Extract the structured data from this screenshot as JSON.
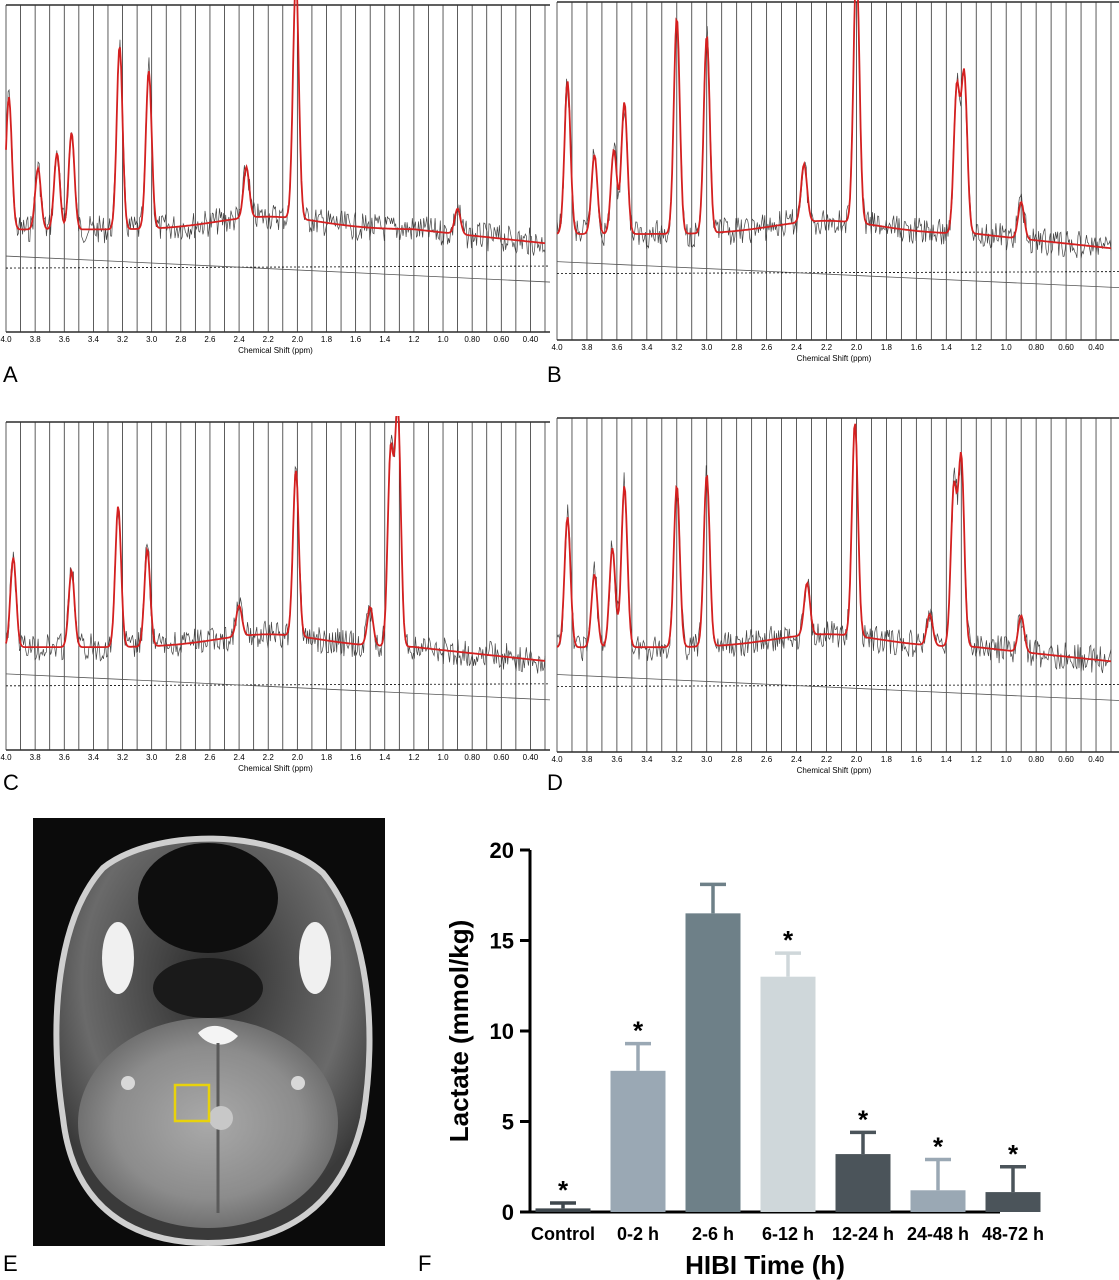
{
  "spectra": [
    {
      "panel_label": "A",
      "x_axis_label": "Chemical Shift (ppm)",
      "ticks": [
        "4.0",
        "3.8",
        "3.6",
        "3.4",
        "3.2",
        "3.0",
        "2.8",
        "2.6",
        "2.4",
        "2.2",
        "2.0",
        "1.8",
        "1.6",
        "1.4",
        "1.2",
        "1.0",
        "0.80",
        "0.60",
        "0.40"
      ],
      "peaks": [
        {
          "ppm": 3.98,
          "height": 0.52
        },
        {
          "ppm": 3.78,
          "height": 0.24
        },
        {
          "ppm": 3.65,
          "height": 0.3
        },
        {
          "ppm": 3.55,
          "height": 0.38
        },
        {
          "ppm": 3.22,
          "height": 0.72
        },
        {
          "ppm": 3.02,
          "height": 0.62
        },
        {
          "ppm": 2.35,
          "height": 0.2
        },
        {
          "ppm": 2.01,
          "height": 0.95
        },
        {
          "ppm": 0.9,
          "height": 0.1
        }
      ]
    },
    {
      "panel_label": "B",
      "x_axis_label": "Chemical Shift (ppm)",
      "ticks": [
        "4.0",
        "3.8",
        "3.6",
        "3.4",
        "3.2",
        "3.0",
        "2.8",
        "2.6",
        "2.4",
        "2.2",
        "2.0",
        "1.8",
        "1.6",
        "1.4",
        "1.2",
        "1.0",
        "0.80",
        "0.60",
        "0.40"
      ],
      "peaks": [
        {
          "ppm": 3.93,
          "height": 0.58
        },
        {
          "ppm": 3.75,
          "height": 0.3
        },
        {
          "ppm": 3.62,
          "height": 0.32
        },
        {
          "ppm": 3.55,
          "height": 0.5
        },
        {
          "ppm": 3.2,
          "height": 0.82
        },
        {
          "ppm": 3.0,
          "height": 0.75
        },
        {
          "ppm": 2.35,
          "height": 0.22
        },
        {
          "ppm": 2.0,
          "height": 0.98
        },
        {
          "ppm": 1.33,
          "height": 0.55
        },
        {
          "ppm": 1.28,
          "height": 0.6
        },
        {
          "ppm": 0.9,
          "height": 0.14
        }
      ]
    },
    {
      "panel_label": "C",
      "x_axis_label": "Chemical Shift (ppm)",
      "ticks": [
        "4.0",
        "3.8",
        "3.6",
        "3.4",
        "3.2",
        "3.0",
        "2.8",
        "2.6",
        "2.4",
        "2.2",
        "2.0",
        "1.8",
        "1.6",
        "1.4",
        "1.2",
        "1.0",
        "0.80",
        "0.60",
        "0.40"
      ],
      "peaks": [
        {
          "ppm": 3.95,
          "height": 0.35
        },
        {
          "ppm": 3.55,
          "height": 0.3
        },
        {
          "ppm": 3.23,
          "height": 0.55
        },
        {
          "ppm": 3.03,
          "height": 0.38
        },
        {
          "ppm": 2.4,
          "height": 0.12
        },
        {
          "ppm": 2.01,
          "height": 0.65
        },
        {
          "ppm": 1.5,
          "height": 0.15
        },
        {
          "ppm": 1.36,
          "height": 0.75
        },
        {
          "ppm": 1.31,
          "height": 0.92
        }
      ]
    },
    {
      "panel_label": "D",
      "x_axis_label": "Chemical Shift (ppm)",
      "ticks": [
        "4.0",
        "3.8",
        "3.6",
        "3.4",
        "3.2",
        "3.0",
        "2.8",
        "2.6",
        "2.4",
        "2.2",
        "2.0",
        "1.8",
        "1.6",
        "1.4",
        "1.2",
        "1.0",
        "0.80",
        "0.60",
        "0.40"
      ],
      "peaks": [
        {
          "ppm": 3.93,
          "height": 0.5
        },
        {
          "ppm": 3.75,
          "height": 0.28
        },
        {
          "ppm": 3.63,
          "height": 0.38
        },
        {
          "ppm": 3.55,
          "height": 0.62
        },
        {
          "ppm": 3.2,
          "height": 0.62
        },
        {
          "ppm": 3.0,
          "height": 0.66
        },
        {
          "ppm": 2.33,
          "height": 0.2
        },
        {
          "ppm": 2.01,
          "height": 0.82
        },
        {
          "ppm": 1.51,
          "height": 0.12
        },
        {
          "ppm": 1.35,
          "height": 0.6
        },
        {
          "ppm": 1.3,
          "height": 0.72
        },
        {
          "ppm": 0.9,
          "height": 0.14
        }
      ]
    }
  ],
  "mri": {
    "panel_label": "E",
    "roi_color": "#e8d20c"
  },
  "chart_data": {
    "type": "bar",
    "panel_label": "F",
    "categories": [
      "Control",
      "0-2 h",
      "2-6 h",
      "6-12 h",
      "12-24 h",
      "24-48 h",
      "48-72 h"
    ],
    "values": [
      0.2,
      7.8,
      16.5,
      13.0,
      3.2,
      1.2,
      1.1
    ],
    "errors": [
      0.3,
      1.5,
      1.6,
      1.3,
      1.2,
      1.7,
      1.4
    ],
    "significance": [
      "*",
      "*",
      "",
      "*",
      "*",
      "*",
      "*"
    ],
    "colors": [
      "#3e474d",
      "#9aa8b4",
      "#6e8088",
      "#cfd7da",
      "#4b545a",
      "#9aa8b4",
      "#4b545a"
    ],
    "xlabel": "HIBI Time (h)",
    "ylabel": "Lactate (mmol/kg)",
    "ylim": [
      0,
      20
    ],
    "yticks": [
      "0",
      "5",
      "10",
      "15",
      "20"
    ]
  }
}
